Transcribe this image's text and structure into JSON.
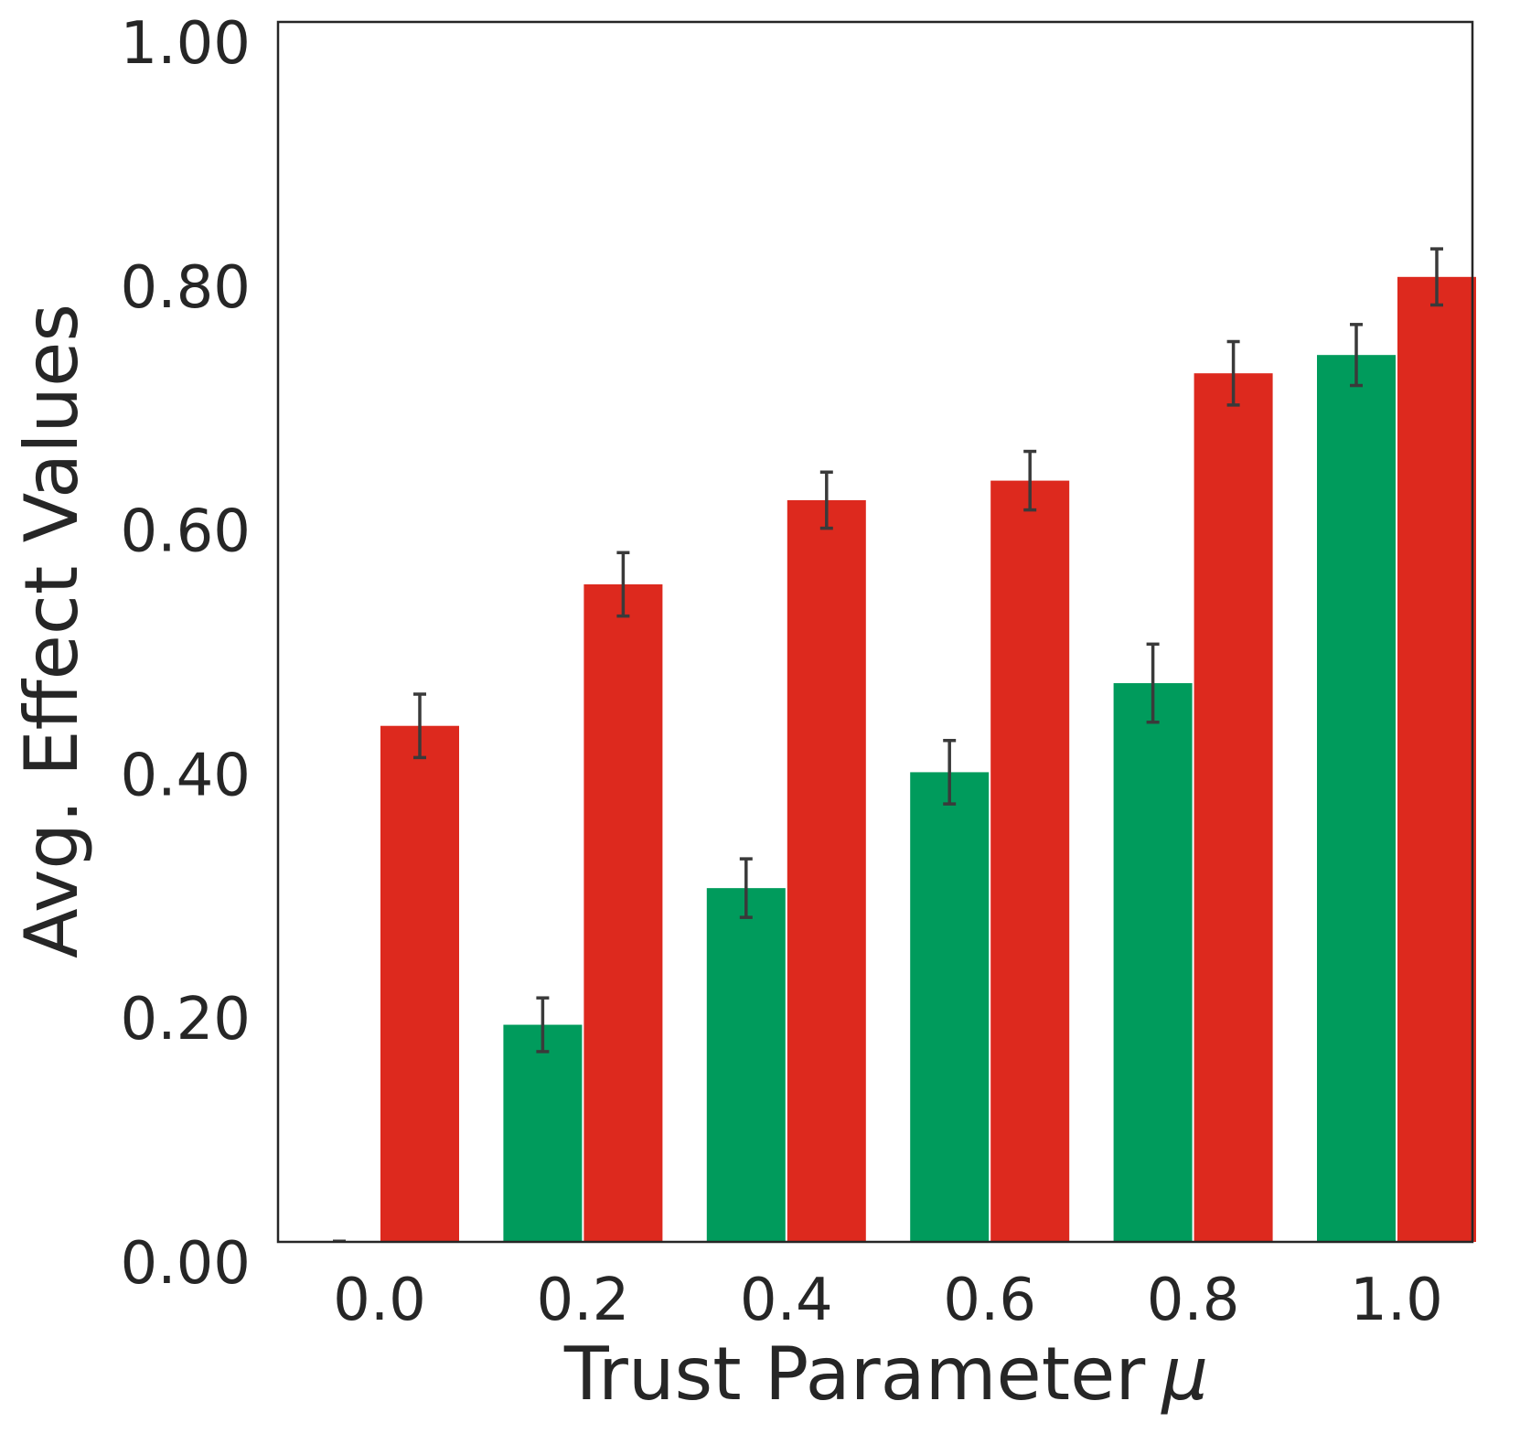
{
  "chart_data": {
    "type": "bar",
    "categories": [
      "0.0",
      "0.2",
      "0.4",
      "0.6",
      "0.8",
      "1.0"
    ],
    "series": [
      {
        "color": "#009b5c",
        "values": [
          0.0,
          0.178,
          0.29,
          0.385,
          0.458,
          0.727
        ],
        "errors": [
          0.0,
          0.022,
          0.024,
          0.026,
          0.032,
          0.025
        ]
      },
      {
        "color": "#dd291e",
        "values": [
          0.423,
          0.539,
          0.608,
          0.624,
          0.712,
          0.791
        ],
        "errors": [
          0.026,
          0.026,
          0.023,
          0.024,
          0.026,
          0.023
        ]
      }
    ],
    "xlabel": "Trust Parameter",
    "xlabel_symbol": "μ",
    "ylabel": "Avg. Effect Values",
    "ylim": [
      0,
      1
    ],
    "yticks": [
      "0.00",
      "0.20",
      "0.40",
      "0.60",
      "0.80",
      "1.00"
    ],
    "grid": false,
    "legend": "none"
  }
}
